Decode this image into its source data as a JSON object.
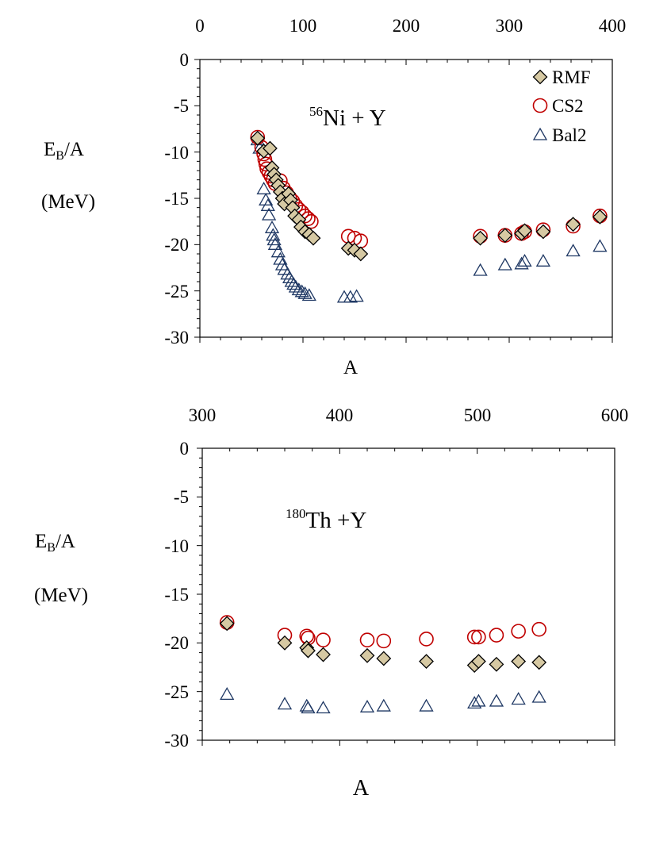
{
  "chart_data": [
    {
      "type": "scatter",
      "title_sup": "56",
      "title_main": "Ni + Y",
      "ylabel_main": "E",
      "ylabel_sub": "B",
      "ylabel_rest": "/A",
      "ylabel_unit": "(MeV)",
      "xlabel": "A",
      "xlim": [
        0,
        400
      ],
      "ylim": [
        -30,
        0
      ],
      "xticks": [
        "0",
        "100",
        "200",
        "300",
        "400"
      ],
      "yticks": [
        "0",
        "-5",
        "-10",
        "-15",
        "-20",
        "-25",
        "-30"
      ],
      "legend_position": "top-right",
      "series": [
        {
          "name": "RMF",
          "marker": "diamond",
          "color": "#d6c9a3",
          "points": [
            [
              56,
              -8.5
            ],
            [
              62,
              -9.9
            ],
            [
              68,
              -9.6
            ],
            [
              70,
              -11.7
            ],
            [
              72,
              -12.4
            ],
            [
              74,
              -13.0
            ],
            [
              76,
              -13.6
            ],
            [
              78,
              -14.3
            ],
            [
              80,
              -15.0
            ],
            [
              82,
              -15.6
            ],
            [
              86,
              -14.5
            ],
            [
              88,
              -15.2
            ],
            [
              90,
              -16.0
            ],
            [
              92,
              -16.9
            ],
            [
              96,
              -17.3
            ],
            [
              98,
              -18.1
            ],
            [
              102,
              -18.6
            ],
            [
              106,
              -18.9
            ],
            [
              110,
              -19.3
            ],
            [
              144,
              -20.4
            ],
            [
              150,
              -20.6
            ],
            [
              156,
              -21.0
            ],
            [
              272,
              -19.3
            ],
            [
              296,
              -19.0
            ],
            [
              312,
              -18.8
            ],
            [
              315,
              -18.5
            ],
            [
              333,
              -18.6
            ],
            [
              362,
              -17.8
            ],
            [
              388,
              -17.0
            ]
          ]
        },
        {
          "name": "CS2",
          "marker": "circle",
          "color": "#c00000",
          "points": [
            [
              56,
              -8.4
            ],
            [
              60,
              -9.5
            ],
            [
              62,
              -10.2
            ],
            [
              63,
              -10.8
            ],
            [
              64,
              -11.3
            ],
            [
              65,
              -11.8
            ],
            [
              67,
              -12.2
            ],
            [
              69,
              -12.6
            ],
            [
              71,
              -13.0
            ],
            [
              73,
              -13.4
            ],
            [
              78,
              -13.1
            ],
            [
              81,
              -13.9
            ],
            [
              84,
              -14.4
            ],
            [
              87,
              -14.9
            ],
            [
              90,
              -15.3
            ],
            [
              93,
              -15.8
            ],
            [
              96,
              -16.2
            ],
            [
              99,
              -16.5
            ],
            [
              102,
              -16.9
            ],
            [
              105,
              -17.2
            ],
            [
              108,
              -17.5
            ],
            [
              144,
              -19.1
            ],
            [
              150,
              -19.3
            ],
            [
              156,
              -19.6
            ],
            [
              272,
              -19.1
            ],
            [
              296,
              -19.0
            ],
            [
              312,
              -18.8
            ],
            [
              315,
              -18.6
            ],
            [
              333,
              -18.4
            ],
            [
              362,
              -18.0
            ],
            [
              388,
              -16.9
            ]
          ]
        },
        {
          "name": "Bal2",
          "marker": "triangle",
          "color": "#1f3864",
          "points": [
            [
              56,
              -8.7
            ],
            [
              58,
              -9.6
            ],
            [
              62,
              -14.0
            ],
            [
              64,
              -15.2
            ],
            [
              66,
              -15.8
            ],
            [
              67,
              -16.8
            ],
            [
              70,
              -18.2
            ],
            [
              71,
              -19.0
            ],
            [
              72,
              -19.5
            ],
            [
              73,
              -20.0
            ],
            [
              76,
              -20.8
            ],
            [
              78,
              -21.6
            ],
            [
              80,
              -22.2
            ],
            [
              82,
              -22.7
            ],
            [
              85,
              -23.2
            ],
            [
              87,
              -23.6
            ],
            [
              89,
              -24.0
            ],
            [
              91,
              -24.3
            ],
            [
              93,
              -24.6
            ],
            [
              96,
              -24.9
            ],
            [
              99,
              -25.1
            ],
            [
              102,
              -25.3
            ],
            [
              106,
              -25.5
            ],
            [
              140,
              -25.7
            ],
            [
              146,
              -25.7
            ],
            [
              152,
              -25.6
            ],
            [
              272,
              -22.8
            ],
            [
              296,
              -22.2
            ],
            [
              312,
              -22.1
            ],
            [
              315,
              -21.8
            ],
            [
              333,
              -21.8
            ],
            [
              362,
              -20.7
            ],
            [
              388,
              -20.2
            ]
          ]
        }
      ]
    },
    {
      "type": "scatter",
      "title_sup": "180",
      "title_main": "Th +Y",
      "ylabel_main": "E",
      "ylabel_sub": "B",
      "ylabel_rest": "/A",
      "ylabel_unit": "(MeV)",
      "xlabel": "A",
      "xlim": [
        300,
        600
      ],
      "ylim": [
        -30,
        0
      ],
      "xticks": [
        "300",
        "400",
        "500",
        "600"
      ],
      "yticks": [
        "0",
        "-5",
        "-10",
        "-15",
        "-20",
        "-25",
        "-30"
      ],
      "series": [
        {
          "name": "RMF",
          "marker": "diamond",
          "color": "#d6c9a3",
          "points": [
            [
              318,
              -18.0
            ],
            [
              360,
              -20.0
            ],
            [
              376,
              -20.5
            ],
            [
              377,
              -20.8
            ],
            [
              388,
              -21.2
            ],
            [
              420,
              -21.3
            ],
            [
              432,
              -21.6
            ],
            [
              463,
              -21.9
            ],
            [
              498,
              -22.3
            ],
            [
              501,
              -21.9
            ],
            [
              514,
              -22.2
            ],
            [
              530,
              -21.9
            ],
            [
              545,
              -22.0
            ]
          ]
        },
        {
          "name": "CS2",
          "marker": "circle",
          "color": "#c00000",
          "points": [
            [
              318,
              -17.9
            ],
            [
              360,
              -19.2
            ],
            [
              376,
              -19.3
            ],
            [
              377,
              -19.5
            ],
            [
              388,
              -19.7
            ],
            [
              420,
              -19.7
            ],
            [
              432,
              -19.8
            ],
            [
              463,
              -19.6
            ],
            [
              498,
              -19.4
            ],
            [
              501,
              -19.4
            ],
            [
              514,
              -19.2
            ],
            [
              530,
              -18.8
            ],
            [
              545,
              -18.6
            ]
          ]
        },
        {
          "name": "Bal2",
          "marker": "triangle",
          "color": "#1f3864",
          "points": [
            [
              318,
              -25.3
            ],
            [
              360,
              -26.3
            ],
            [
              376,
              -26.5
            ],
            [
              377,
              -26.7
            ],
            [
              388,
              -26.7
            ],
            [
              420,
              -26.6
            ],
            [
              432,
              -26.5
            ],
            [
              463,
              -26.5
            ],
            [
              498,
              -26.2
            ],
            [
              501,
              -26.0
            ],
            [
              514,
              -26.0
            ],
            [
              530,
              -25.8
            ],
            [
              545,
              -25.6
            ]
          ]
        }
      ]
    }
  ]
}
